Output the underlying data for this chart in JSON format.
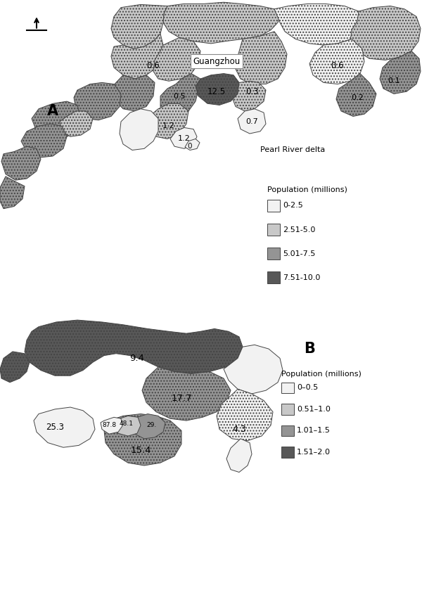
{
  "fig_width": 6.0,
  "fig_height": 8.66,
  "dpi": 100,
  "bg_color": "#ffffff",
  "map_edge_color": "#444444",
  "map_linewidth": 0.7,
  "panel_A_label": "A",
  "panel_B_label": "B",
  "legend_A_title": "Population (millions)",
  "legend_A_items": [
    "0-2.5",
    "2.51-5.0",
    "5.01-7.5",
    "7.51-10.0"
  ],
  "legend_A_colors": [
    "#f2f2f2",
    "#c8c8c8",
    "#949494",
    "#585858"
  ],
  "legend_B_title": "Population (millions)",
  "legend_B_items": [
    "0–0.5",
    "0.51–1.0",
    "1.01–1.5",
    "1.51–2.0"
  ],
  "legend_B_colors": [
    "#f2f2f2",
    "#c8c8c8",
    "#949494",
    "#585858"
  ],
  "guangzhou_label": "Guangzhou",
  "pearl_river_label": "Pearl River delta",
  "label_A_val": "0.6",
  "label_A_12_5": "12.5",
  "label_A_0_5": "0.5",
  "label_A_0_3": "0.3",
  "label_A_0_6b": "0.6",
  "label_A_0_1": "0.1",
  "label_A_0_2": "0.2",
  "label_A_0_7": "0.7",
  "label_A_1_2a": "1.2",
  "label_A_1_2b": "1.2",
  "label_A_0": "0",
  "label_B_9_4": "9.4",
  "label_B_17_7": "17.7",
  "label_B_15_4": "15.4",
  "label_B_4_3": "4.3",
  "label_B_25_3": "25.3",
  "label_B_87_8": "87.8",
  "label_B_48_1": "48.1",
  "label_B_29": "29."
}
